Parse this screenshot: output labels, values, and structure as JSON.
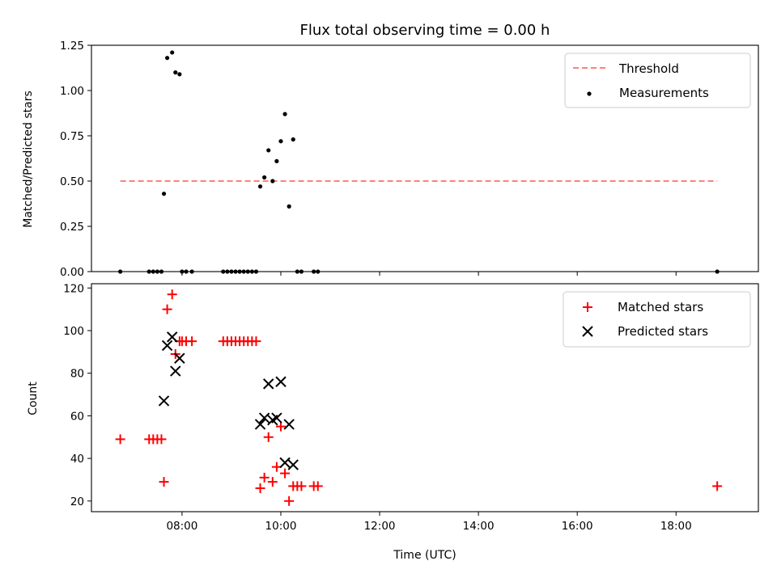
{
  "chart_data": [
    {
      "type": "scatter",
      "title": "Flux total observing time = 0.00 h",
      "xlabel": "",
      "ylabel": "Matched/Predicted stars",
      "xlim": [
        "06:10",
        "19:40"
      ],
      "ylim": [
        0,
        1.25
      ],
      "yticks": [
        0,
        0.25,
        0.5,
        0.75,
        1.0,
        1.25
      ],
      "ytick_labels": [
        "0.00",
        "0.25",
        "0.50",
        "0.75",
        "1.00",
        "1.25"
      ],
      "xticks": [
        "08:00",
        "10:00",
        "12:00",
        "14:00",
        "16:00",
        "18:00"
      ],
      "show_xtick_labels": false,
      "grid": false,
      "legend_position": "top-right",
      "threshold": {
        "name": "Threshold",
        "value": 0.5,
        "x_start": "06:45",
        "x_end": "18:50",
        "color": "#ff8080"
      },
      "series": [
        {
          "name": "Measurements",
          "color": "#000000",
          "marker": "dot",
          "points": [
            [
              "06:45",
              0
            ],
            [
              "07:20",
              0
            ],
            [
              "07:25",
              0
            ],
            [
              "07:30",
              0
            ],
            [
              "07:35",
              0
            ],
            [
              "07:38",
              0.43
            ],
            [
              "07:42",
              1.18
            ],
            [
              "07:48",
              1.21
            ],
            [
              "07:52",
              1.1
            ],
            [
              "07:57",
              1.09
            ],
            [
              "08:00",
              0
            ],
            [
              "08:05",
              0
            ],
            [
              "08:12",
              0
            ],
            [
              "08:50",
              0
            ],
            [
              "08:55",
              0
            ],
            [
              "09:00",
              0
            ],
            [
              "09:05",
              0
            ],
            [
              "09:10",
              0
            ],
            [
              "09:15",
              0
            ],
            [
              "09:20",
              0
            ],
            [
              "09:25",
              0
            ],
            [
              "09:30",
              0
            ],
            [
              "09:35",
              0.47
            ],
            [
              "09:40",
              0.52
            ],
            [
              "09:45",
              0.67
            ],
            [
              "09:50",
              0.5
            ],
            [
              "09:55",
              0.61
            ],
            [
              "10:00",
              0.72
            ],
            [
              "10:05",
              0.87
            ],
            [
              "10:10",
              0.36
            ],
            [
              "10:15",
              0.73
            ],
            [
              "10:20",
              0
            ],
            [
              "10:25",
              0
            ],
            [
              "10:40",
              0
            ],
            [
              "10:45",
              0
            ],
            [
              "18:50",
              0
            ]
          ]
        }
      ]
    },
    {
      "type": "scatter",
      "title": "",
      "xlabel": "Time (UTC)",
      "ylabel": "Count",
      "xlim": [
        "06:10",
        "19:40"
      ],
      "ylim": [
        15,
        122
      ],
      "yticks": [
        20,
        40,
        60,
        80,
        100,
        120
      ],
      "ytick_labels": [
        "20",
        "40",
        "60",
        "80",
        "100",
        "120"
      ],
      "xticks": [
        "08:00",
        "10:00",
        "12:00",
        "14:00",
        "16:00",
        "18:00"
      ],
      "xtick_labels": [
        "08:00",
        "10:00",
        "12:00",
        "14:00",
        "16:00",
        "18:00"
      ],
      "grid": false,
      "legend_position": "top-right",
      "series": [
        {
          "name": "Matched stars",
          "color": "#ff0000",
          "marker": "plus",
          "points": [
            [
              "06:45",
              49
            ],
            [
              "07:20",
              49
            ],
            [
              "07:25",
              49
            ],
            [
              "07:30",
              49
            ],
            [
              "07:35",
              49
            ],
            [
              "07:38",
              29
            ],
            [
              "07:42",
              110
            ],
            [
              "07:48",
              117
            ],
            [
              "07:52",
              89
            ],
            [
              "07:57",
              95
            ],
            [
              "08:00",
              95
            ],
            [
              "08:05",
              95
            ],
            [
              "08:12",
              95
            ],
            [
              "08:50",
              95
            ],
            [
              "08:55",
              95
            ],
            [
              "09:00",
              95
            ],
            [
              "09:05",
              95
            ],
            [
              "09:10",
              95
            ],
            [
              "09:15",
              95
            ],
            [
              "09:20",
              95
            ],
            [
              "09:25",
              95
            ],
            [
              "09:30",
              95
            ],
            [
              "09:35",
              26
            ],
            [
              "09:40",
              31
            ],
            [
              "09:45",
              50
            ],
            [
              "09:50",
              29
            ],
            [
              "09:55",
              36
            ],
            [
              "10:00",
              55
            ],
            [
              "10:05",
              33
            ],
            [
              "10:10",
              20
            ],
            [
              "10:15",
              27
            ],
            [
              "10:20",
              27
            ],
            [
              "10:25",
              27
            ],
            [
              "10:40",
              27
            ],
            [
              "10:45",
              27
            ],
            [
              "18:50",
              27
            ]
          ]
        },
        {
          "name": "Predicted stars",
          "color": "#000000",
          "marker": "x",
          "points": [
            [
              "07:38",
              67
            ],
            [
              "07:42",
              93
            ],
            [
              "07:48",
              97
            ],
            [
              "07:52",
              81
            ],
            [
              "07:57",
              87
            ],
            [
              "09:35",
              56
            ],
            [
              "09:40",
              59
            ],
            [
              "09:45",
              75
            ],
            [
              "09:50",
              58
            ],
            [
              "09:55",
              59
            ],
            [
              "10:00",
              76
            ],
            [
              "10:05",
              38
            ],
            [
              "10:10",
              56
            ],
            [
              "10:15",
              37
            ]
          ]
        }
      ]
    }
  ]
}
